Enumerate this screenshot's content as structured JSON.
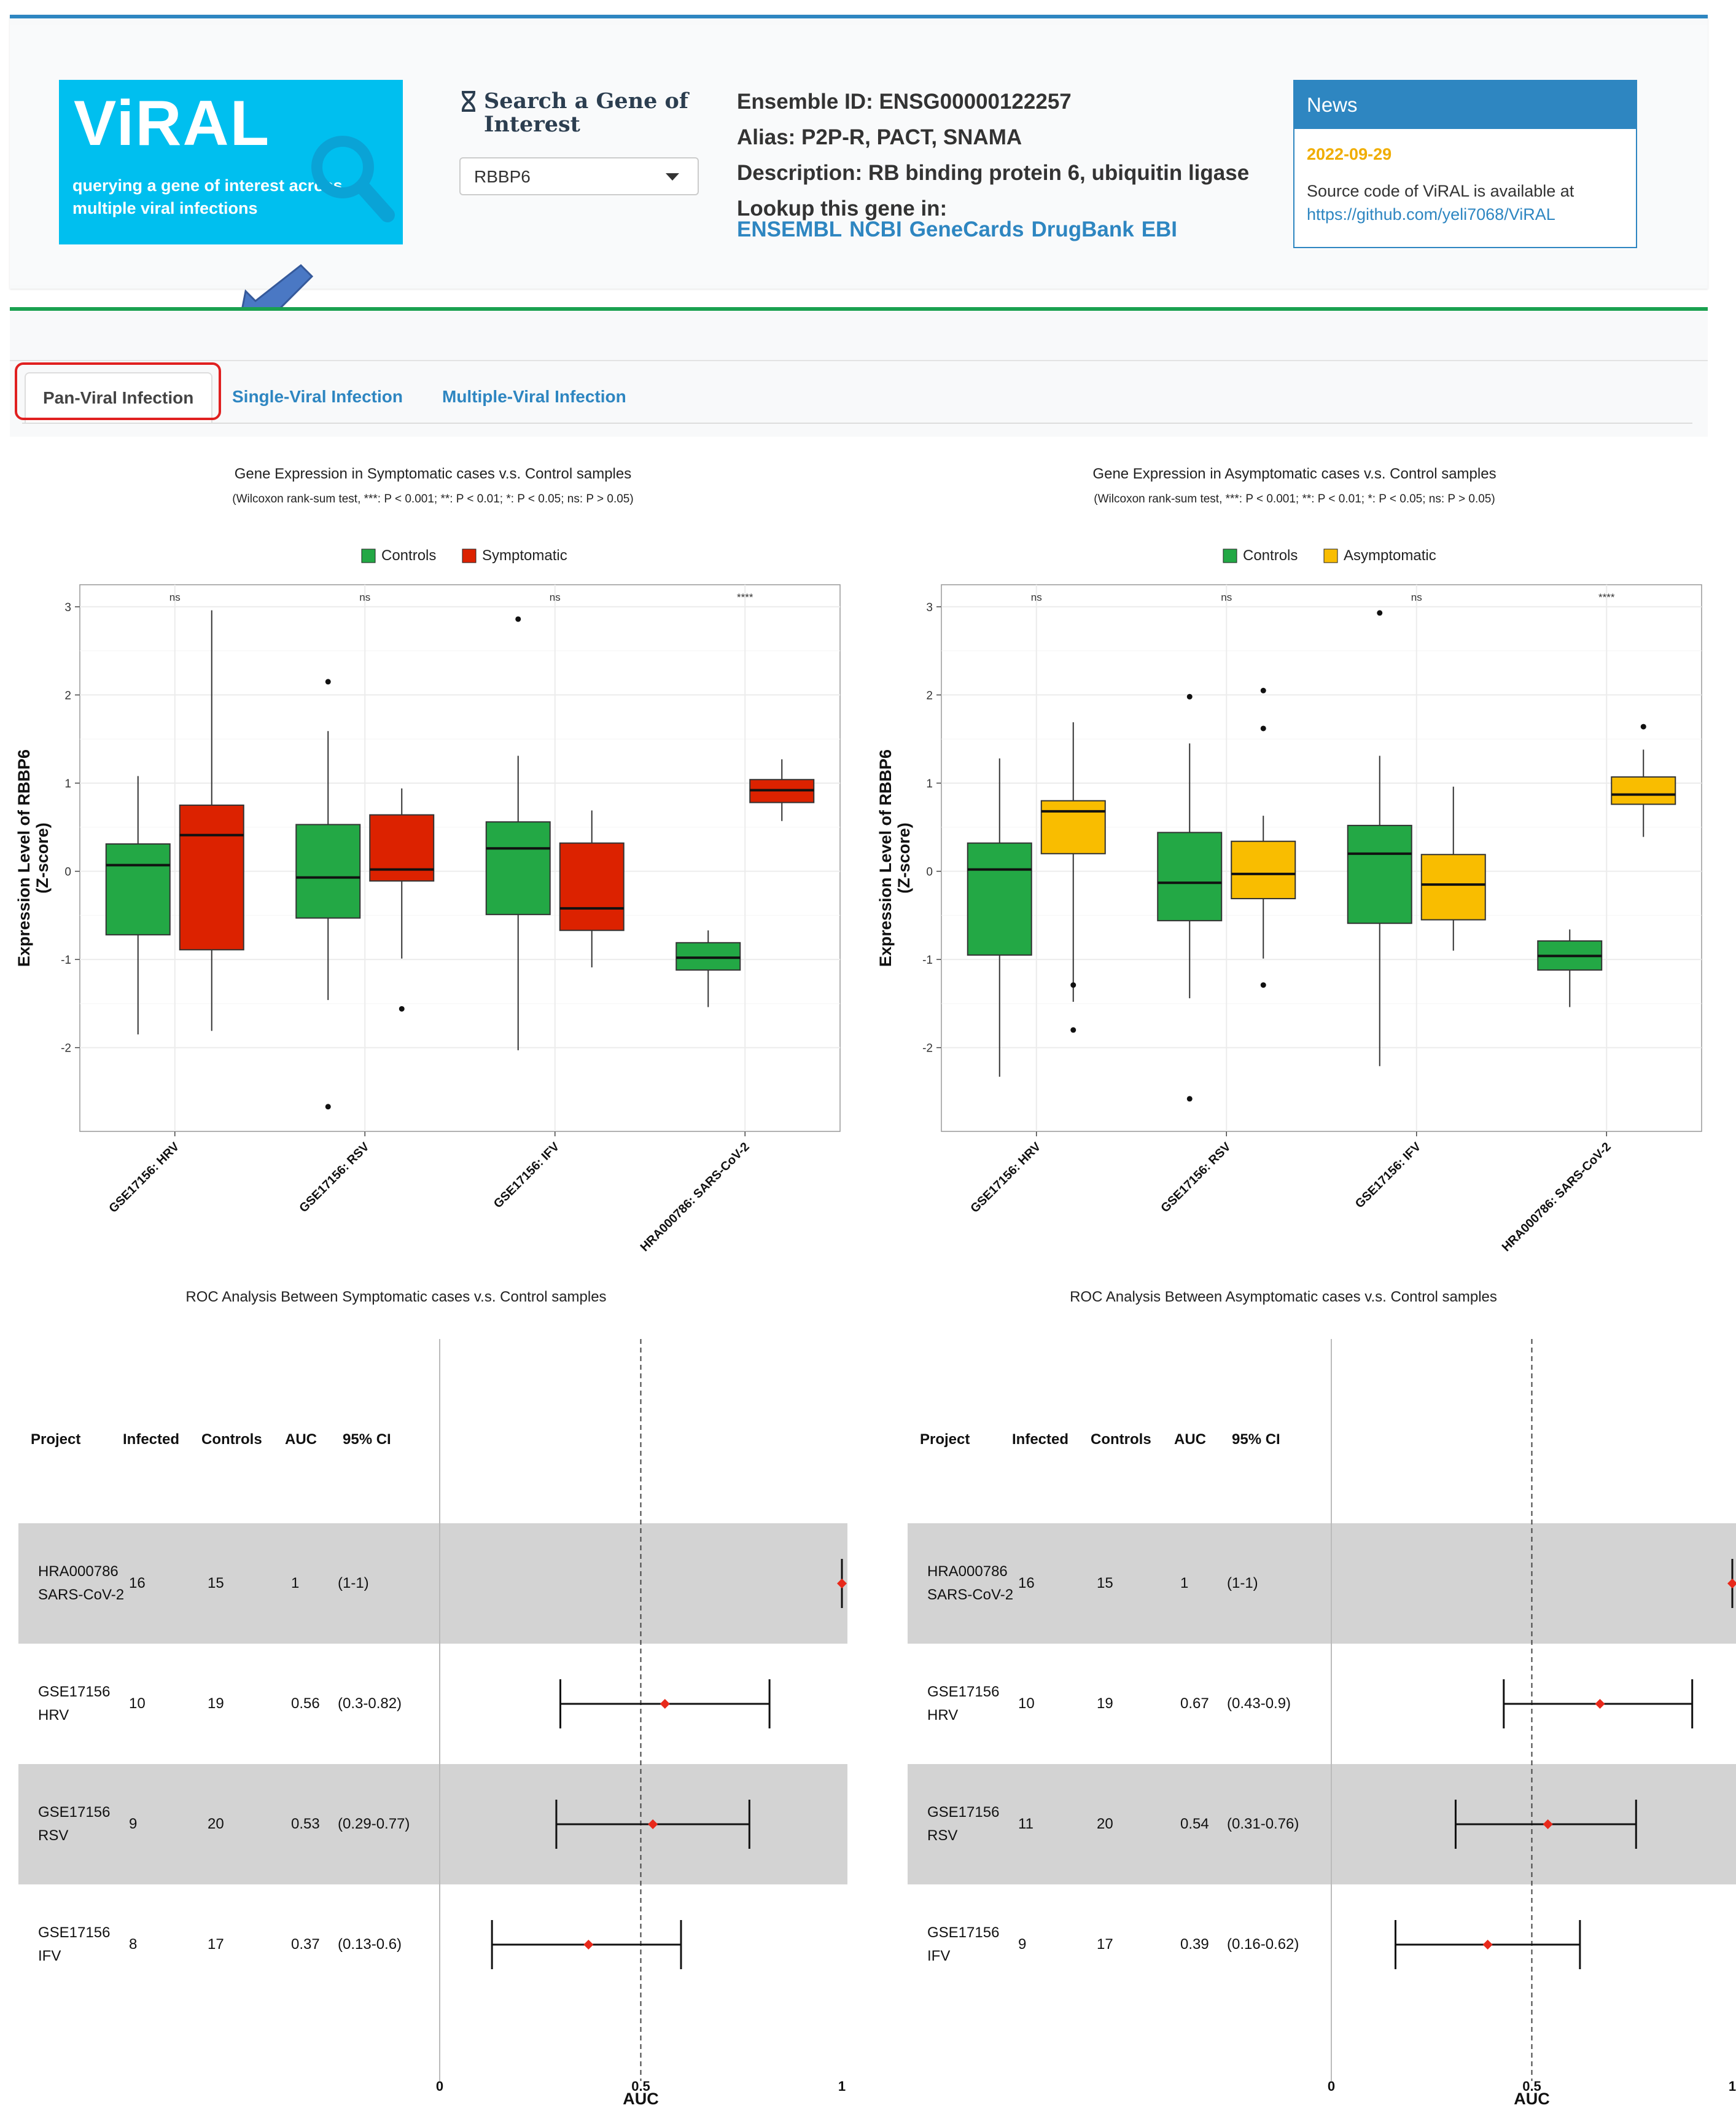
{
  "app": {
    "logo_title": "ViRAL",
    "logo_subtitle": "querying a gene of interest across multiple viral infections"
  },
  "search": {
    "title": "Search a Gene of Interest",
    "selected_gene": "RBBP6"
  },
  "gene_info": {
    "ensemble": "Ensemble ID: ENSG00000122257",
    "alias": "Alias: P2P-R, PACT, SNAMA",
    "description": "Description: RB binding protein 6, ubiquitin ligase",
    "lookup_label": "Lookup this gene in:",
    "links": [
      "ENSEMBL",
      "NCBI",
      "GeneCards",
      "DrugBank",
      "EBI"
    ]
  },
  "news": {
    "title": "News",
    "date": "2022-09-29",
    "text": "Source code of ViRAL is available at",
    "link": "https://github.com/yeli7068/ViRAL"
  },
  "tabs": {
    "pan": "Pan-Viral Infection",
    "single": "Single-Viral Infection",
    "multiple": "Multiple-Viral Infection"
  },
  "colors": {
    "controls": "#23a845",
    "symptomatic": "#dc2200",
    "asymptomatic": "#f9bd00",
    "accent": "#2e86c1",
    "highlight": "#e02020"
  },
  "chart_data": [
    {
      "type": "box",
      "title": "Gene Expression in Symptomatic cases v.s. Control samples",
      "subtitle": "(Wilcoxon rank-sum test, ***: P < 0.001; **: P < 0.01; *: P < 0.05; ns: P > 0.05)",
      "ylabel": "Expression Level of RBBP6\n(Z-score)",
      "ylabel_line1": "Expression Level of RBBP6",
      "ylabel_line2": "(Z-score)",
      "ylim": [
        -2.95,
        3.25
      ],
      "yticks": [
        -2,
        -1,
        0,
        1,
        2,
        3
      ],
      "legend": [
        "Controls",
        "Symptomatic"
      ],
      "categories": [
        "GSE17156: HRV",
        "GSE17156: RSV",
        "GSE17156: IFV",
        "HRA000786: SARS-CoV-2"
      ],
      "significance": [
        "ns",
        "ns",
        "ns",
        "****"
      ],
      "series": [
        {
          "name": "Controls",
          "boxes": [
            {
              "min": -1.85,
              "q1": -0.72,
              "median": 0.07,
              "q3": 0.31,
              "max": 1.08,
              "outliers": []
            },
            {
              "min": -1.46,
              "q1": -0.53,
              "median": -0.07,
              "q3": 0.53,
              "max": 1.59,
              "outliers": [
                2.15,
                -2.67
              ]
            },
            {
              "min": -2.03,
              "q1": -0.49,
              "median": 0.26,
              "q3": 0.56,
              "max": 1.31,
              "outliers": [
                2.86
              ]
            },
            {
              "min": -1.54,
              "q1": -1.12,
              "median": -0.98,
              "q3": -0.81,
              "max": -0.67,
              "outliers": []
            }
          ]
        },
        {
          "name": "Symptomatic",
          "boxes": [
            {
              "min": -1.81,
              "q1": -0.89,
              "median": 0.41,
              "q3": 0.75,
              "max": 2.96,
              "outliers": []
            },
            {
              "min": -0.99,
              "q1": -0.11,
              "median": 0.02,
              "q3": 0.64,
              "max": 0.94,
              "outliers": [
                -1.56
              ]
            },
            {
              "min": -1.09,
              "q1": -0.67,
              "median": -0.42,
              "q3": 0.32,
              "max": 0.69,
              "outliers": []
            },
            {
              "min": 0.57,
              "q1": 0.78,
              "median": 0.92,
              "q3": 1.04,
              "max": 1.27,
              "outliers": []
            }
          ]
        }
      ]
    },
    {
      "type": "box",
      "title": "Gene Expression in Asymptomatic cases v.s. Control samples",
      "subtitle": "(Wilcoxon rank-sum test, ***: P < 0.001; **: P < 0.01; *: P < 0.05; ns: P > 0.05)",
      "ylabel": "Expression Level of RBBP6\n(Z-score)",
      "ylabel_line1": "Expression Level of RBBP6",
      "ylabel_line2": "(Z-score)",
      "ylim": [
        -2.95,
        3.25
      ],
      "yticks": [
        -2,
        -1,
        0,
        1,
        2,
        3
      ],
      "legend": [
        "Controls",
        "Asymptomatic"
      ],
      "categories": [
        "GSE17156: HRV",
        "GSE17156: RSV",
        "GSE17156: IFV",
        "HRA000786: SARS-CoV-2"
      ],
      "significance": [
        "ns",
        "ns",
        "ns",
        "****"
      ],
      "series": [
        {
          "name": "Controls",
          "boxes": [
            {
              "min": -2.33,
              "q1": -0.95,
              "median": 0.02,
              "q3": 0.32,
              "max": 1.28,
              "outliers": []
            },
            {
              "min": -1.44,
              "q1": -0.56,
              "median": -0.13,
              "q3": 0.44,
              "max": 1.45,
              "outliers": [
                1.98,
                -2.58
              ]
            },
            {
              "min": -2.21,
              "q1": -0.59,
              "median": 0.2,
              "q3": 0.52,
              "max": 1.31,
              "outliers": [
                2.93
              ]
            },
            {
              "min": -1.54,
              "q1": -1.12,
              "median": -0.96,
              "q3": -0.79,
              "max": -0.66,
              "outliers": []
            }
          ]
        },
        {
          "name": "Asymptomatic",
          "boxes": [
            {
              "min": -1.48,
              "q1": 0.2,
              "median": 0.68,
              "q3": 0.8,
              "max": 1.69,
              "outliers": [
                -1.29,
                -1.8
              ]
            },
            {
              "min": -0.99,
              "q1": -0.31,
              "median": -0.03,
              "q3": 0.34,
              "max": 0.63,
              "outliers": [
                2.05,
                1.62,
                -1.29
              ]
            },
            {
              "min": -0.9,
              "q1": -0.55,
              "median": -0.15,
              "q3": 0.19,
              "max": 0.96,
              "outliers": []
            },
            {
              "min": 0.39,
              "q1": 0.76,
              "median": 0.87,
              "q3": 1.07,
              "max": 1.38,
              "outliers": [
                1.64
              ]
            }
          ]
        }
      ]
    },
    {
      "type": "forest",
      "title": "ROC Analysis Between Symptomatic cases v.s. Control samples",
      "xlabel": "AUC",
      "xlim": [
        0,
        1
      ],
      "xticks": [
        "0",
        "0.5",
        "1"
      ],
      "reference_line": 0.5,
      "columns": [
        "Project",
        "Infected",
        "Controls",
        "AUC",
        "95% CI"
      ],
      "rows": [
        {
          "project": [
            "HRA000786",
            "SARS-CoV-2"
          ],
          "infected": "16",
          "controls": "15",
          "auc": "1",
          "ci": "(1-1)",
          "auc_value": 1.0,
          "lower": 1.0,
          "upper": 1.0
        },
        {
          "project": [
            "GSE17156",
            "HRV"
          ],
          "infected": "10",
          "controls": "19",
          "auc": "0.56",
          "ci": "(0.3-0.82)",
          "auc_value": 0.56,
          "lower": 0.3,
          "upper": 0.82
        },
        {
          "project": [
            "GSE17156",
            "RSV"
          ],
          "infected": "9",
          "controls": "20",
          "auc": "0.53",
          "ci": "(0.29-0.77)",
          "auc_value": 0.53,
          "lower": 0.29,
          "upper": 0.77
        },
        {
          "project": [
            "GSE17156",
            "IFV"
          ],
          "infected": "8",
          "controls": "17",
          "auc": "0.37",
          "ci": "(0.13-0.6)",
          "auc_value": 0.37,
          "lower": 0.13,
          "upper": 0.6
        }
      ]
    },
    {
      "type": "forest",
      "title": "ROC Analysis Between Asymptomatic cases v.s. Control samples",
      "xlabel": "AUC",
      "xlim": [
        0,
        1
      ],
      "xticks": [
        "0",
        "0.5",
        "1"
      ],
      "reference_line": 0.5,
      "columns": [
        "Project",
        "Infected",
        "Controls",
        "AUC",
        "95% CI"
      ],
      "rows": [
        {
          "project": [
            "HRA000786",
            "SARS-CoV-2"
          ],
          "infected": "16",
          "controls": "15",
          "auc": "1",
          "ci": "(1-1)",
          "auc_value": 1.0,
          "lower": 1.0,
          "upper": 1.0
        },
        {
          "project": [
            "GSE17156",
            "HRV"
          ],
          "infected": "10",
          "controls": "19",
          "auc": "0.67",
          "ci": "(0.43-0.9)",
          "auc_value": 0.67,
          "lower": 0.43,
          "upper": 0.9
        },
        {
          "project": [
            "GSE17156",
            "RSV"
          ],
          "infected": "11",
          "controls": "20",
          "auc": "0.54",
          "ci": "(0.31-0.76)",
          "auc_value": 0.54,
          "lower": 0.31,
          "upper": 0.76
        },
        {
          "project": [
            "GSE17156",
            "IFV"
          ],
          "infected": "9",
          "controls": "17",
          "auc": "0.39",
          "ci": "(0.16-0.62)",
          "auc_value": 0.39,
          "lower": 0.16,
          "upper": 0.62
        }
      ]
    }
  ]
}
